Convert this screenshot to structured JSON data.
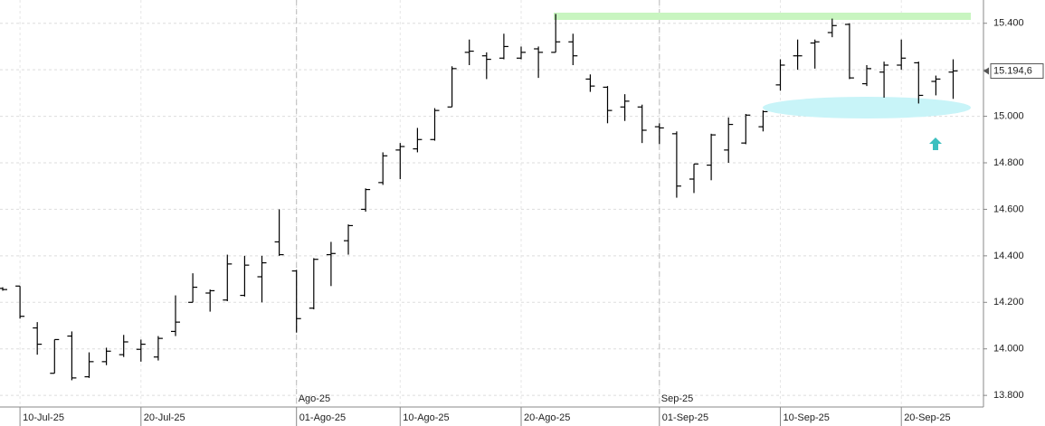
{
  "chart_data": {
    "type": "ohlc",
    "categories": [
      null,
      "10-Jul-25",
      null,
      null,
      null,
      null,
      null,
      null,
      "20-Jul-25",
      null,
      null,
      null,
      null,
      null,
      null,
      null,
      null,
      "01-Ago-25",
      null,
      null,
      null,
      null,
      null,
      "10-Ago-25",
      null,
      null,
      null,
      null,
      null,
      null,
      "20-Ago-25",
      null,
      null,
      null,
      null,
      null,
      null,
      null,
      "01-Sep-25",
      null,
      null,
      null,
      null,
      null,
      null,
      "10-Sep-25",
      null,
      null,
      null,
      null,
      null,
      null,
      "20-Sep-25",
      null,
      null,
      null
    ],
    "periods": [
      null,
      null,
      null,
      null,
      null,
      null,
      null,
      null,
      null,
      null,
      null,
      null,
      null,
      null,
      null,
      null,
      null,
      "Ago-25",
      null,
      null,
      null,
      null,
      null,
      null,
      null,
      null,
      null,
      null,
      null,
      null,
      null,
      null,
      null,
      null,
      null,
      null,
      null,
      null,
      "Sep-25",
      null,
      null,
      null,
      null,
      null,
      null,
      null,
      null,
      null,
      null,
      null,
      null,
      null,
      null,
      null,
      null,
      null
    ],
    "series": [
      {
        "color": "#000000",
        "open": [
          14260,
          14270,
          14090,
          13895,
          14055,
          13880,
          13945,
          13975,
          13998,
          13965,
          14075,
          14200,
          14240,
          14210,
          14230,
          14310,
          14460,
          14335,
          14175,
          14405,
          14465,
          14600,
          14715,
          14855,
          14860,
          14900,
          15040,
          15275,
          15260,
          15250,
          15250,
          15290,
          15275,
          15320,
          15160,
          15125,
          15040,
          15040,
          14955,
          14925,
          14730,
          14790,
          14855,
          14885,
          14955,
          15135,
          15260,
          15315,
          15360,
          15395,
          15140,
          15190,
          15220,
          15230,
          15150,
          15190
        ],
        "high": [
          14265,
          14270,
          14115,
          14040,
          14075,
          13985,
          14005,
          14060,
          14040,
          14055,
          14230,
          14325,
          14255,
          14405,
          14400,
          14400,
          14600,
          14340,
          14390,
          14460,
          14535,
          14690,
          14845,
          14885,
          14950,
          15035,
          15215,
          15330,
          15275,
          15355,
          15300,
          15300,
          15440,
          15355,
          15180,
          15130,
          15095,
          15050,
          14970,
          14935,
          14795,
          14925,
          14995,
          15010,
          15025,
          15245,
          15330,
          15330,
          15420,
          15400,
          15220,
          15235,
          15330,
          15235,
          15175,
          15245
        ],
        "low": [
          14250,
          14130,
          13975,
          13895,
          13865,
          13875,
          13930,
          13965,
          13945,
          13950,
          14055,
          14200,
          14160,
          14205,
          14225,
          14200,
          14400,
          14070,
          14170,
          14270,
          14405,
          14590,
          14705,
          14730,
          14845,
          14895,
          15040,
          15220,
          15160,
          15245,
          15245,
          15165,
          15275,
          15220,
          15105,
          14970,
          14980,
          14885,
          14880,
          14650,
          14670,
          14725,
          14800,
          14880,
          14935,
          15110,
          15200,
          15205,
          15340,
          15160,
          15130,
          15080,
          15200,
          15055,
          15090,
          15075
        ],
        "close": [
          14255,
          14140,
          14020,
          14040,
          13875,
          13945,
          13990,
          14030,
          14020,
          14045,
          14115,
          14265,
          14250,
          14365,
          14360,
          14370,
          14405,
          14130,
          14385,
          14410,
          14530,
          14685,
          14830,
          14870,
          14900,
          15025,
          15205,
          15280,
          15245,
          15300,
          15275,
          15275,
          15320,
          15260,
          15130,
          15025,
          15065,
          14940,
          14950,
          14700,
          14795,
          14920,
          14965,
          15005,
          15020,
          15220,
          15260,
          15320,
          15390,
          15165,
          15205,
          15220,
          15250,
          15090,
          15160,
          15195
        ]
      }
    ],
    "last_price": {
      "value": 15194.6,
      "label": "15.194,6"
    },
    "ylim": [
      13750,
      15500
    ],
    "yticks": [
      {
        "value": 13800,
        "label": "13.800"
      },
      {
        "value": 14000,
        "label": "14.000"
      },
      {
        "value": 14200,
        "label": "14.200"
      },
      {
        "value": 14400,
        "label": "14.400"
      },
      {
        "value": 14600,
        "label": "14.600"
      },
      {
        "value": 14800,
        "label": "14.800"
      },
      {
        "value": 15000,
        "label": "15.000"
      },
      {
        "value": 15200,
        "label": "15.200"
      },
      {
        "value": 15400,
        "label": "15.400"
      }
    ],
    "grid": true
  }
}
